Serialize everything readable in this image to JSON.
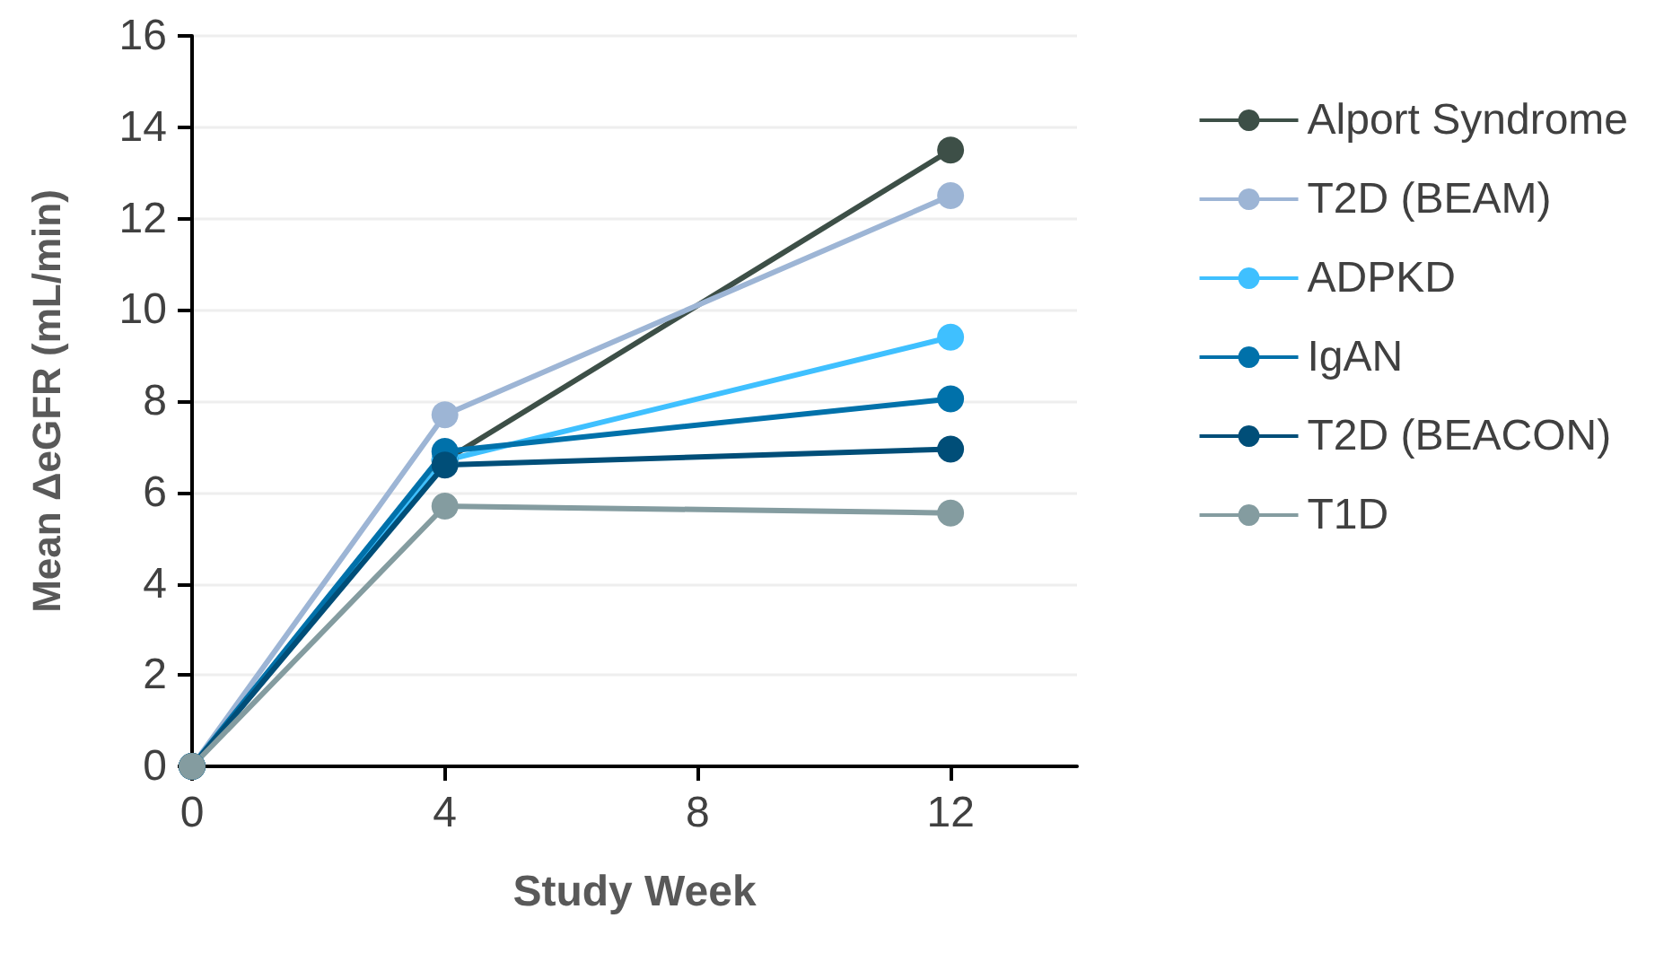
{
  "chart_data": {
    "type": "line",
    "xlabel": "Study Week",
    "ylabel": "Mean ΔeGFR (mL/min)",
    "x": [
      0,
      4,
      12
    ],
    "xlim": [
      0,
      14
    ],
    "xticks": [
      0,
      4,
      8,
      12
    ],
    "ylim": [
      0,
      16
    ],
    "yticks": [
      0,
      2,
      4,
      6,
      8,
      10,
      12,
      14,
      16
    ],
    "grid": "y",
    "legend": "right",
    "marker": "circle",
    "line_style": "solid",
    "series": [
      {
        "name": "Alport Syndrome",
        "color": "#3d4f47",
        "values": [
          0,
          6.7,
          13.5
        ]
      },
      {
        "name": "T2D (BEAM)",
        "color": "#9db5d5",
        "values": [
          0,
          7.7,
          12.5
        ]
      },
      {
        "name": "ADPKD",
        "color": "#3fc0ff",
        "values": [
          0,
          6.7,
          9.4
        ]
      },
      {
        "name": "IgAN",
        "color": "#0071aa",
        "values": [
          0,
          6.9,
          8.05
        ]
      },
      {
        "name": "T2D (BEACON)",
        "color": "#004e78",
        "values": [
          0,
          6.6,
          6.95
        ]
      },
      {
        "name": "T1D",
        "color": "#849ca0",
        "values": [
          0,
          5.7,
          5.55
        ]
      }
    ]
  }
}
